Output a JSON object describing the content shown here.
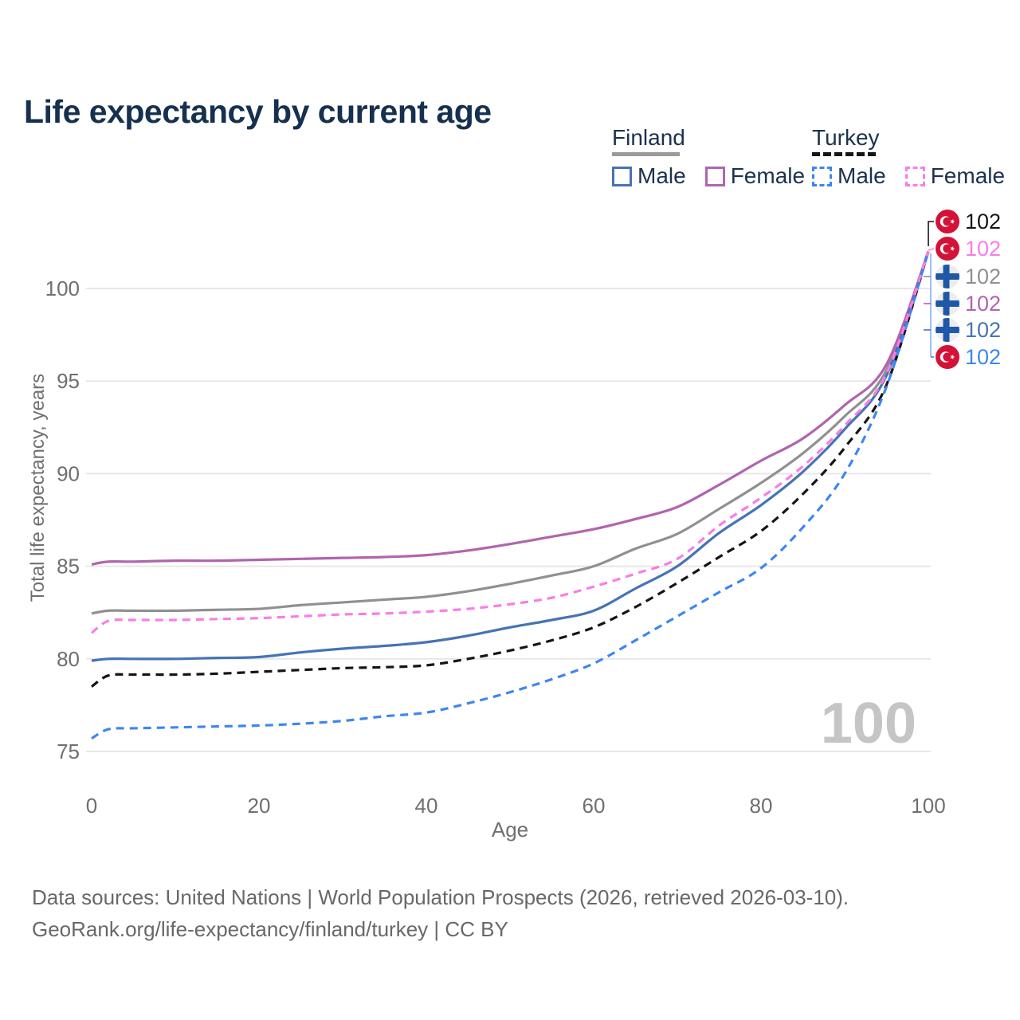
{
  "title": "Life expectancy by current age",
  "legend": {
    "groups": [
      {
        "name": "Finland",
        "line_style": "solid",
        "underline_color": "#9a9a9a",
        "items": [
          {
            "label": "Male",
            "color": "#4673b5",
            "dashed": false
          },
          {
            "label": "Female",
            "color": "#b164ae",
            "dashed": false
          }
        ]
      },
      {
        "name": "Turkey",
        "line_style": "dashed",
        "underline_color": "#151515",
        "items": [
          {
            "label": "Male",
            "color": "#3e86f0",
            "dashed": true
          },
          {
            "label": "Female",
            "color": "#fa7ce6",
            "dashed": true
          }
        ]
      }
    ]
  },
  "chart_data": {
    "type": "line",
    "title": "Life expectancy by current age",
    "xlabel": "Age",
    "ylabel": "Total life expectancy, years",
    "xlim": [
      0,
      100
    ],
    "ylim": [
      74,
      103
    ],
    "xticks": [
      0,
      20,
      40,
      60,
      80,
      100
    ],
    "yticks": [
      75,
      80,
      85,
      90,
      95,
      100
    ],
    "grid": "horizontal",
    "x": [
      0,
      2,
      5,
      10,
      15,
      20,
      25,
      30,
      35,
      40,
      45,
      50,
      55,
      60,
      65,
      70,
      75,
      80,
      85,
      90,
      95,
      100
    ],
    "series": [
      {
        "name": "Finland Both sexes",
        "country": "Finland",
        "sex": "Both",
        "color": "#909090",
        "dashed": false,
        "values": [
          82.45,
          82.6,
          82.6,
          82.6,
          82.65,
          82.7,
          82.9,
          83.05,
          83.2,
          83.35,
          83.65,
          84.05,
          84.5,
          85.0,
          85.95,
          86.75,
          88.1,
          89.5,
          91.1,
          93.1,
          95.6,
          102
        ]
      },
      {
        "name": "Finland Female",
        "country": "Finland",
        "sex": "Female",
        "color": "#b164ae",
        "dashed": false,
        "values": [
          85.1,
          85.25,
          85.25,
          85.3,
          85.3,
          85.35,
          85.4,
          85.45,
          85.5,
          85.6,
          85.85,
          86.2,
          86.6,
          87.0,
          87.55,
          88.2,
          89.4,
          90.7,
          91.9,
          93.7,
          95.9,
          102
        ]
      },
      {
        "name": "Finland Male",
        "country": "Finland",
        "sex": "Male",
        "color": "#4673b5",
        "dashed": false,
        "values": [
          79.9,
          80.0,
          80.0,
          80.0,
          80.05,
          80.1,
          80.35,
          80.55,
          80.7,
          80.9,
          81.25,
          81.7,
          82.1,
          82.6,
          83.8,
          85.0,
          86.8,
          88.3,
          90.1,
          92.4,
          95.3,
          102
        ]
      },
      {
        "name": "Turkey Both sexes",
        "country": "Turkey",
        "sex": "Both",
        "color": "#151515",
        "dashed": true,
        "values": [
          78.5,
          79.1,
          79.15,
          79.15,
          79.2,
          79.3,
          79.4,
          79.5,
          79.55,
          79.65,
          80.0,
          80.45,
          81.0,
          81.7,
          82.8,
          84.1,
          85.5,
          86.9,
          88.9,
          91.4,
          94.8,
          102
        ]
      },
      {
        "name": "Turkey Male",
        "country": "Turkey",
        "sex": "Male",
        "color": "#3e86f0",
        "dashed": true,
        "values": [
          75.7,
          76.2,
          76.25,
          76.3,
          76.35,
          76.4,
          76.5,
          76.65,
          76.9,
          77.1,
          77.6,
          78.2,
          78.9,
          79.75,
          81.0,
          82.3,
          83.6,
          84.9,
          87.1,
          90.0,
          94.7,
          102
        ]
      },
      {
        "name": "Turkey Female",
        "country": "Turkey",
        "sex": "Female",
        "color": "#fa7ce6",
        "dashed": true,
        "values": [
          81.4,
          82.05,
          82.1,
          82.1,
          82.15,
          82.2,
          82.3,
          82.4,
          82.45,
          82.55,
          82.7,
          82.95,
          83.3,
          83.9,
          84.6,
          85.4,
          87.2,
          88.7,
          90.4,
          92.6,
          95.4,
          102
        ]
      }
    ],
    "end_labels": [
      {
        "value": "102",
        "country": "Turkey",
        "series": "Turkey Both sexes",
        "color": "#151515"
      },
      {
        "value": "102",
        "country": "Turkey",
        "series": "Turkey Female",
        "color": "#fa7ce6"
      },
      {
        "value": "102",
        "country": "Finland",
        "series": "Finland Both sexes",
        "color": "#909090"
      },
      {
        "value": "102",
        "country": "Finland",
        "series": "Finland Female",
        "color": "#b164ae"
      },
      {
        "value": "102",
        "country": "Finland",
        "series": "Finland Male",
        "color": "#4673b5"
      },
      {
        "value": "102",
        "country": "Turkey",
        "series": "Turkey Male",
        "color": "#3e86f0"
      }
    ]
  },
  "watermark": "100",
  "footer": {
    "line1": "Data sources: United Nations | World Population Prospects (2026, retrieved 2026-03-10).",
    "line2": "GeoRank.org/life-expectancy/finland/turkey | CC BY"
  },
  "colors": {
    "title": "#16304f",
    "axis_text": "#6f6f6f",
    "gridline": "#e7e7e7",
    "watermark": "#c5c5c5",
    "footer_text": "#686868",
    "connector_blue": "#85b1f3"
  }
}
